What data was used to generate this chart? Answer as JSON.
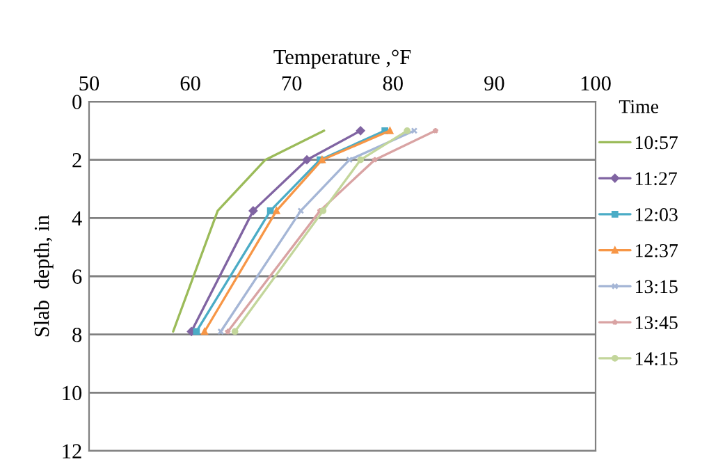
{
  "chart_data": {
    "type": "line",
    "xlabel": "Temperature ,°F",
    "ylabel": "Slab  depth, in",
    "legend_title": "Time",
    "xlim": [
      50,
      100
    ],
    "xticks": [
      50,
      60,
      70,
      80,
      90,
      100
    ],
    "ylim": [
      12,
      0
    ],
    "yticks": [
      0,
      2,
      4,
      6,
      8,
      10,
      12
    ],
    "grid": "y",
    "legend": "right",
    "series": [
      {
        "name": "10:57",
        "color": "#9bbb59",
        "marker": "none",
        "x": [
          73.2,
          67.4,
          62.7,
          58.3
        ],
        "values": [
          1,
          2,
          3.75,
          7.9
        ]
      },
      {
        "name": "11:27",
        "color": "#8064a2",
        "marker": "diamond",
        "x": [
          76.8,
          71.5,
          66.2,
          60.1
        ],
        "values": [
          1,
          2,
          3.75,
          7.9
        ]
      },
      {
        "name": "12:03",
        "color": "#4bacc6",
        "marker": "square",
        "x": [
          79.2,
          72.8,
          67.9,
          60.6
        ],
        "values": [
          1,
          2,
          3.75,
          7.9
        ]
      },
      {
        "name": "12:37",
        "color": "#f79646",
        "marker": "triangle",
        "x": [
          79.7,
          73.0,
          68.5,
          61.4
        ],
        "values": [
          1,
          2,
          3.75,
          7.9
        ]
      },
      {
        "name": "13:15",
        "color": "#a5b6d6",
        "marker": "cross",
        "x": [
          82.1,
          75.7,
          70.9,
          63.0
        ],
        "values": [
          1,
          2,
          3.75,
          7.9
        ]
      },
      {
        "name": "13:45",
        "color": "#d9a3a3",
        "marker": "star",
        "x": [
          84.2,
          78.2,
          72.8,
          63.7
        ],
        "values": [
          1,
          2,
          3.75,
          7.9
        ]
      },
      {
        "name": "14:15",
        "color": "#c3d69b",
        "marker": "circle",
        "x": [
          81.4,
          76.8,
          73.1,
          64.4
        ],
        "values": [
          1,
          2,
          3.75,
          7.9
        ]
      }
    ]
  }
}
